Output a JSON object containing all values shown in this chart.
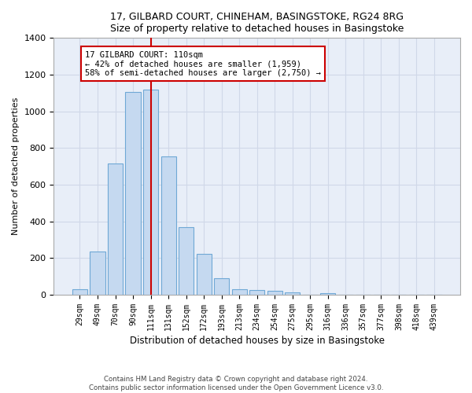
{
  "title1": "17, GILBARD COURT, CHINEHAM, BASINGSTOKE, RG24 8RG",
  "title2": "Size of property relative to detached houses in Basingstoke",
  "xlabel": "Distribution of detached houses by size in Basingstoke",
  "ylabel": "Number of detached properties",
  "footnote1": "Contains HM Land Registry data © Crown copyright and database right 2024.",
  "footnote2": "Contains public sector information licensed under the Open Government Licence v3.0.",
  "bar_labels": [
    "29sqm",
    "49sqm",
    "70sqm",
    "90sqm",
    "111sqm",
    "131sqm",
    "152sqm",
    "172sqm",
    "193sqm",
    "213sqm",
    "234sqm",
    "254sqm",
    "275sqm",
    "295sqm",
    "316sqm",
    "336sqm",
    "357sqm",
    "377sqm",
    "398sqm",
    "418sqm",
    "439sqm"
  ],
  "bar_values": [
    30,
    235,
    715,
    1105,
    1120,
    755,
    370,
    225,
    90,
    30,
    25,
    22,
    15,
    0,
    10,
    0,
    0,
    0,
    0,
    0,
    0
  ],
  "bar_color": "#c5d9f0",
  "bar_edgecolor": "#6fa8d5",
  "annotation_title": "17 GILBARD COURT: 110sqm",
  "annotation_line1": "← 42% of detached houses are smaller (1,959)",
  "annotation_line2": "58% of semi-detached houses are larger (2,750) →",
  "annotation_box_color": "#ffffff",
  "annotation_box_edgecolor": "#cc0000",
  "vline_color": "#cc0000",
  "ylim": [
    0,
    1400
  ],
  "yticks": [
    0,
    200,
    400,
    600,
    800,
    1000,
    1200,
    1400
  ],
  "background_color": "#ffffff",
  "plot_bg_color": "#e8eef8",
  "grid_color": "#d0d8e8"
}
